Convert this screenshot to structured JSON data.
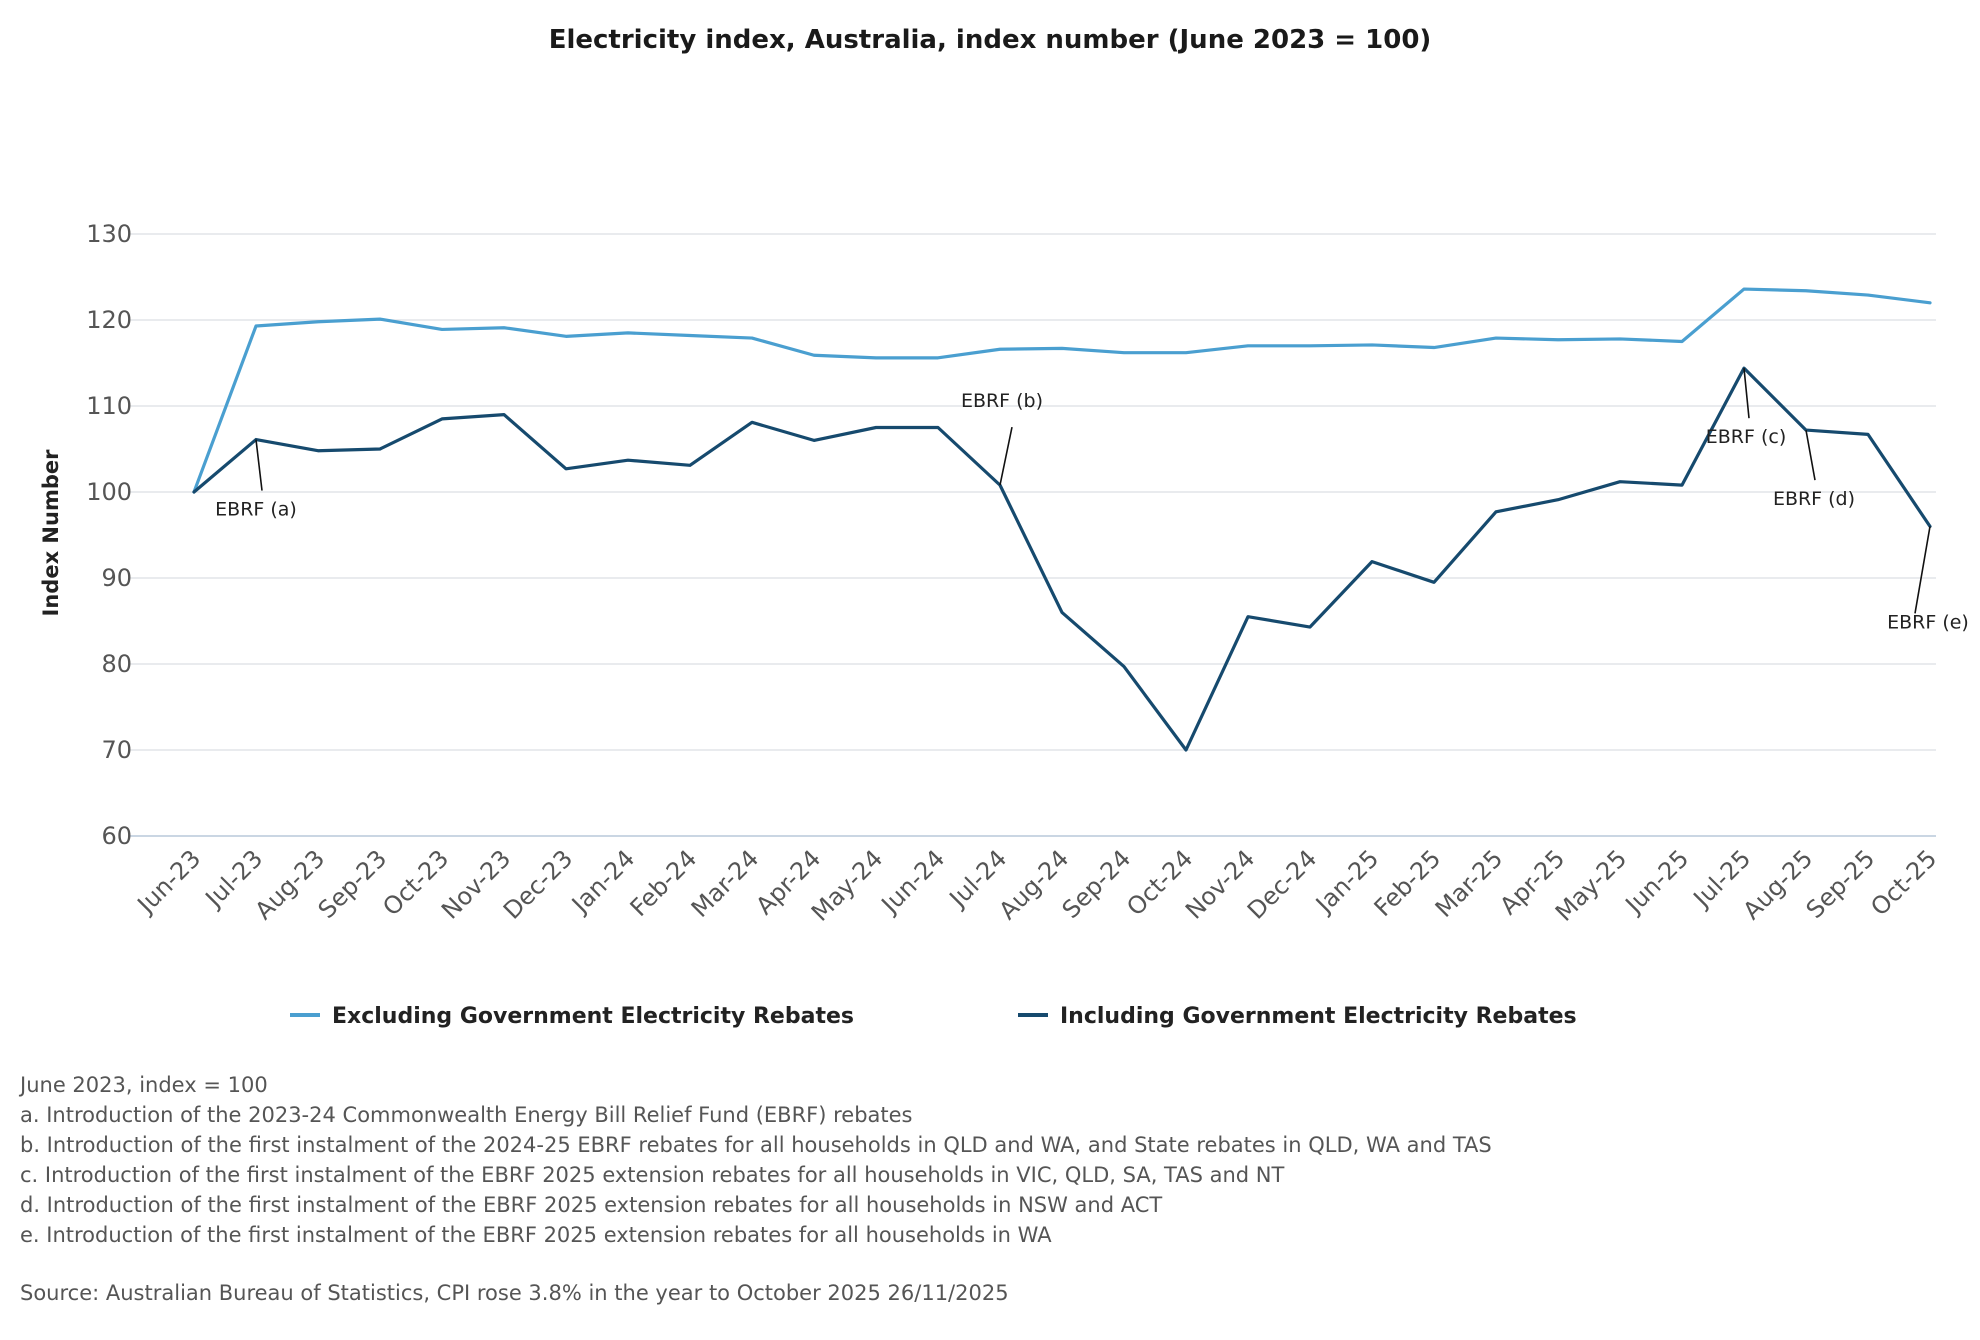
{
  "chart_data": {
    "type": "line",
    "title": "Electricity index, Australia, index number (June 2023 = 100)",
    "ylabel": "Index Number",
    "xlabel": "",
    "ylim": [
      60,
      130
    ],
    "yticks": [
      "60",
      "70",
      "80",
      "90",
      "100",
      "110",
      "120",
      "130"
    ],
    "grid": true,
    "legend_position": "bottom",
    "categories": [
      "Jun-23",
      "Jul-23",
      "Aug-23",
      "Sep-23",
      "Oct-23",
      "Nov-23",
      "Dec-23",
      "Jan-24",
      "Feb-24",
      "Mar-24",
      "Apr-24",
      "May-24",
      "Jun-24",
      "Jul-24",
      "Aug-24",
      "Sep-24",
      "Oct-24",
      "Nov-24",
      "Dec-24",
      "Jan-25",
      "Feb-25",
      "Mar-25",
      "Apr-25",
      "May-25",
      "Jun-25",
      "Jul-25",
      "Aug-25",
      "Sep-25",
      "Oct-25"
    ],
    "series": [
      {
        "name": "Excluding Government Electricity Rebates",
        "color": "#4a9fd0",
        "values": [
          100,
          119.3,
          119.8,
          120.1,
          118.9,
          119.1,
          118.1,
          118.5,
          118.2,
          117.9,
          115.9,
          115.6,
          115.6,
          116.6,
          116.7,
          116.2,
          116.2,
          117.0,
          117.0,
          117.1,
          116.8,
          117.9,
          117.7,
          117.8,
          117.5,
          123.6,
          123.4,
          122.9,
          122.0
        ]
      },
      {
        "name": "Including Government Electricity Rebates",
        "color": "#164a6e",
        "values": [
          100,
          106.1,
          104.8,
          105.0,
          108.5,
          109.0,
          102.7,
          103.7,
          103.1,
          108.1,
          106.0,
          107.5,
          107.5,
          100.8,
          86.0,
          79.7,
          70.0,
          85.5,
          84.3,
          91.9,
          89.5,
          97.7,
          99.1,
          101.2,
          100.8,
          114.4,
          107.2,
          106.7,
          96.0
        ]
      }
    ],
    "annotations": [
      {
        "label": "EBRF (a)",
        "category": "Jul-23",
        "series": 1
      },
      {
        "label": "EBRF (b)",
        "category": "Jul-24",
        "series": 1
      },
      {
        "label": "EBRF (c)",
        "category": "Jul-25",
        "series": 1
      },
      {
        "label": "EBRF (d)",
        "category": "Aug-25",
        "series": 1
      },
      {
        "label": "EBRF (e)",
        "category": "Oct-25",
        "series": 1
      }
    ]
  },
  "notes": {
    "base": "June 2023, index = 100",
    "items": [
      "a. Introduction of the 2023-24 Commonwealth Energy Bill Relief Fund (EBRF) rebates",
      "b. Introduction of the first instalment of the 2024-25 EBRF rebates for all households in QLD and WA, and State rebates in QLD, WA and TAS",
      "c. Introduction of the first instalment of the EBRF 2025 extension rebates for all households in VIC, QLD, SA, TAS and NT",
      "d. Introduction of the first instalment of the EBRF 2025 extension rebates for all households in NSW and ACT",
      "e. Introduction of the first instalment of the EBRF 2025 extension rebates for all households in WA"
    ],
    "source": "Source: Australian Bureau of Statistics, CPI rose 3.8% in the year to October 2025 26/11/2025"
  }
}
